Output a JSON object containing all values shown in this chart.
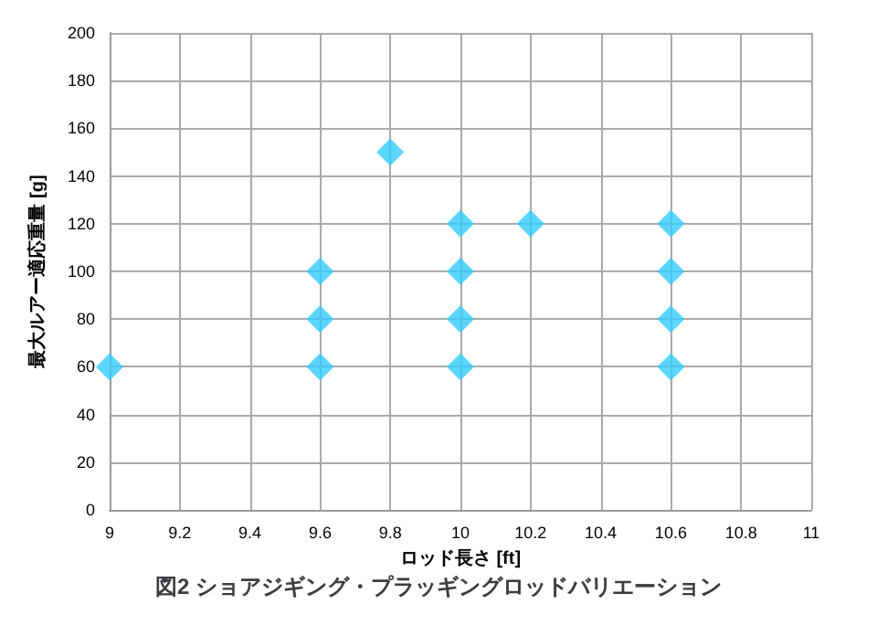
{
  "chart_data": {
    "type": "scatter",
    "title": "図2 ショアジギング・プラッギングロッドバリエーション",
    "xlabel": "ロッド長さ [ft]",
    "ylabel": "最大ルアー適応重量 [g]",
    "x": [
      9,
      9.6,
      9.6,
      9.6,
      9.8,
      10,
      10,
      10,
      10,
      10.2,
      10.6,
      10.6,
      10.6,
      10.6
    ],
    "series": [
      {
        "color": "#33ccff",
        "values": [
          60,
          60,
          80,
          100,
          150,
          60,
          80,
          100,
          120,
          120,
          60,
          80,
          100,
          120
        ]
      }
    ],
    "xlim": [
      9,
      11
    ],
    "xticks": [
      9,
      9.2,
      9.4,
      9.6,
      9.8,
      10,
      10.2,
      10.4,
      10.6,
      10.8,
      11
    ],
    "ylim": [
      0,
      200
    ],
    "yticks": [
      0,
      20,
      40,
      60,
      80,
      100,
      120,
      140,
      160,
      180,
      200
    ],
    "grid": true,
    "marker": "diamond"
  }
}
